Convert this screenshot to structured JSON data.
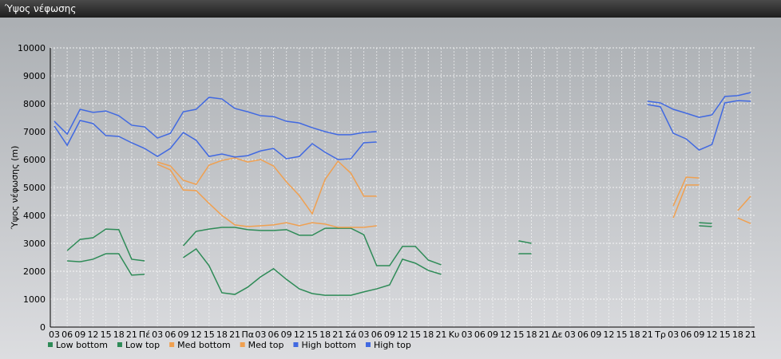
{
  "chart_data": {
    "type": "line",
    "title": "Ύψος νέφωσης",
    "ylabel": "Ύψος νέφωσης (m)",
    "categories": [
      "03",
      "06",
      "09",
      "12",
      "15",
      "18",
      "21",
      "Πέ",
      "03",
      "06",
      "09",
      "12",
      "15",
      "18",
      "21",
      "Πα",
      "03",
      "06",
      "09",
      "12",
      "15",
      "18",
      "21",
      "Σά",
      "03",
      "06",
      "09",
      "12",
      "15",
      "18",
      "21",
      "Κυ",
      "03",
      "06",
      "09",
      "12",
      "15",
      "18",
      "21",
      "Δε",
      "03",
      "06",
      "09",
      "12",
      "15",
      "18",
      "21",
      "Τρ",
      "03",
      "06",
      "09",
      "12",
      "15",
      "18",
      "21"
    ],
    "ylim": [
      0,
      10000
    ],
    "yticks": [
      0,
      1000,
      2000,
      3000,
      4000,
      5000,
      6000,
      7000,
      8000,
      9000,
      10000
    ],
    "grid": true,
    "series": [
      {
        "name": "Low bottom",
        "color": "#2e8b57",
        "values": [
          null,
          2370,
          2340,
          2430,
          2630,
          2630,
          1860,
          1890,
          null,
          null,
          2490,
          2800,
          2200,
          1230,
          1170,
          1430,
          1800,
          2090,
          1710,
          1370,
          1200,
          1140,
          1140,
          1140,
          1260,
          1370,
          1510,
          2430,
          2290,
          2030,
          1890,
          null,
          null,
          null,
          null,
          null,
          2630,
          2630,
          null,
          null,
          null,
          null,
          null,
          null,
          null,
          null,
          null,
          null,
          null,
          null,
          3630,
          3600,
          null,
          null,
          null
        ]
      },
      {
        "name": "Low top",
        "color": "#2e8b57",
        "values": [
          null,
          2740,
          3140,
          3200,
          3510,
          3490,
          2430,
          2370,
          null,
          null,
          2910,
          3430,
          3510,
          3570,
          3570,
          3490,
          3460,
          3460,
          3490,
          3290,
          3290,
          3540,
          3540,
          3540,
          3310,
          2200,
          2200,
          2890,
          2890,
          2400,
          2230,
          null,
          null,
          null,
          null,
          null,
          3090,
          3000,
          null,
          null,
          null,
          null,
          null,
          null,
          null,
          null,
          null,
          null,
          null,
          null,
          3740,
          3710,
          null,
          null,
          null
        ]
      },
      {
        "name": "Med bottom",
        "color": "#f0a050",
        "values": [
          null,
          null,
          null,
          null,
          null,
          null,
          null,
          null,
          5830,
          5630,
          4910,
          4890,
          4430,
          4000,
          3660,
          3600,
          3630,
          3660,
          3740,
          3630,
          3740,
          3690,
          3570,
          3570,
          3570,
          3630,
          null,
          null,
          null,
          null,
          null,
          null,
          null,
          null,
          null,
          null,
          null,
          null,
          null,
          null,
          null,
          null,
          null,
          null,
          null,
          null,
          null,
          null,
          3910,
          5090,
          5090,
          null,
          null,
          3910,
          3710
        ]
      },
      {
        "name": "Med top",
        "color": "#f0a050",
        "values": [
          null,
          null,
          null,
          null,
          null,
          null,
          null,
          null,
          5910,
          5770,
          5260,
          5110,
          5800,
          5970,
          6060,
          5910,
          6000,
          5770,
          5200,
          4710,
          4060,
          5290,
          5940,
          5510,
          4690,
          4690,
          null,
          null,
          null,
          null,
          null,
          null,
          null,
          null,
          null,
          null,
          null,
          null,
          null,
          null,
          null,
          null,
          null,
          null,
          null,
          null,
          null,
          null,
          4340,
          5370,
          5340,
          null,
          null,
          4170,
          4690
        ]
      },
      {
        "name": "High bottom",
        "color": "#4169e1",
        "values": [
          7200,
          6510,
          7400,
          7290,
          6860,
          6830,
          6600,
          6400,
          6110,
          6400,
          6970,
          6690,
          6110,
          6200,
          6090,
          6140,
          6310,
          6400,
          6030,
          6110,
          6570,
          6260,
          6000,
          6030,
          6600,
          6630,
          null,
          null,
          null,
          null,
          null,
          null,
          null,
          null,
          null,
          null,
          null,
          null,
          null,
          null,
          null,
          null,
          null,
          null,
          null,
          null,
          7970,
          7890,
          6940,
          6740,
          6340,
          6540,
          8030,
          8110,
          8090
        ]
      },
      {
        "name": "High top",
        "color": "#4169e1",
        "values": [
          7370,
          6910,
          7800,
          7690,
          7740,
          7570,
          7230,
          7170,
          6770,
          6940,
          7710,
          7800,
          8230,
          8170,
          7830,
          7710,
          7570,
          7540,
          7370,
          7310,
          7140,
          7000,
          6890,
          6890,
          6970,
          7000,
          null,
          null,
          null,
          null,
          null,
          null,
          null,
          null,
          null,
          null,
          null,
          null,
          null,
          null,
          null,
          null,
          null,
          null,
          null,
          null,
          8090,
          8030,
          7800,
          7660,
          7510,
          7600,
          8260,
          8290,
          8400
        ]
      }
    ]
  }
}
